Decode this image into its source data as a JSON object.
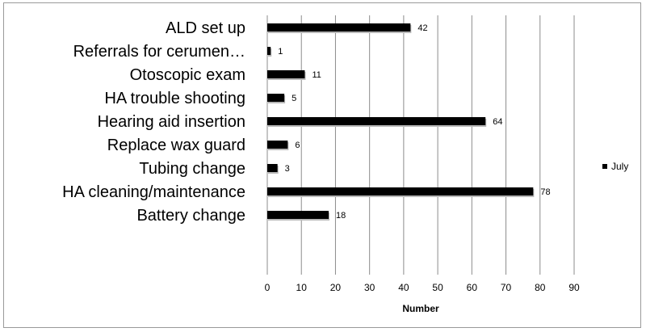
{
  "chart_data": {
    "type": "bar",
    "orientation": "horizontal",
    "categories": [
      "ALD set up",
      "Referrals for cerumen…",
      "Otoscopic exam",
      "HA trouble shooting",
      "Hearing aid insertion",
      "Replace wax guard",
      "Tubing change",
      "HA cleaning/maintenance",
      "Battery change"
    ],
    "series": [
      {
        "name": "July",
        "values": [
          42,
          1,
          11,
          5,
          64,
          6,
          3,
          78,
          18
        ],
        "color": "#000000"
      }
    ],
    "x_ticks": [
      "0",
      "10",
      "20",
      "30",
      "40",
      "50",
      "60",
      "70",
      "80",
      "90"
    ],
    "xlim": [
      0,
      90
    ],
    "xlabel": "Number",
    "ylabel": "",
    "title": "",
    "grid": "vertical",
    "legend_position": "right"
  }
}
